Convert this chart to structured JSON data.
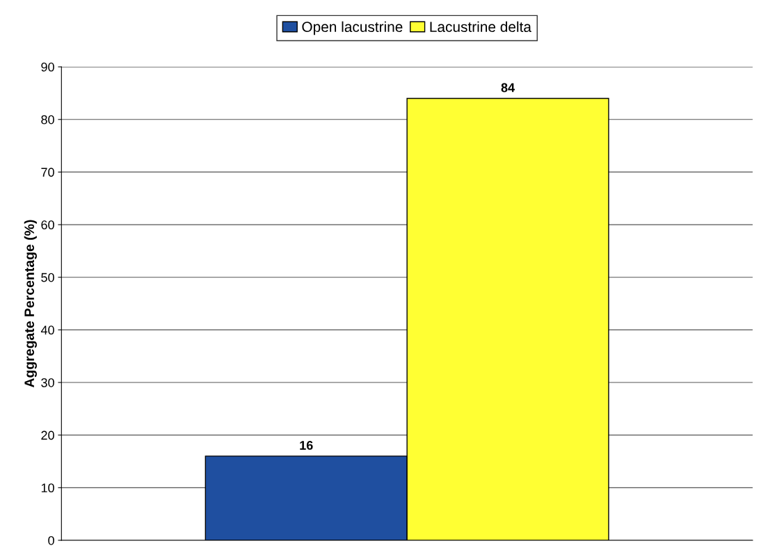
{
  "chart_data": {
    "type": "bar",
    "ylabel": "Aggregate Percentage (%)",
    "categories": [
      null
    ],
    "series": [
      {
        "name": "Open lacustrine",
        "color": "#1f4fa0",
        "values": [
          16
        ]
      },
      {
        "name": "Lacustrine delta",
        "color": "#ffff33",
        "values": [
          84
        ]
      }
    ],
    "ylim": [
      0,
      90
    ],
    "yticks": [
      0,
      10,
      20,
      30,
      40,
      50,
      60,
      70,
      80,
      90
    ],
    "grid": "y",
    "legend": "top",
    "data_labels": true
  }
}
